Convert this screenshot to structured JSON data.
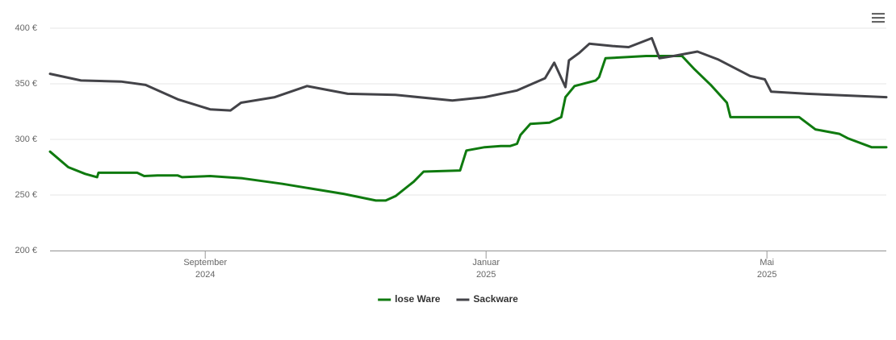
{
  "chart_data": {
    "type": "line",
    "series": [
      {
        "name": "lose Ware",
        "color": "#0f7a0f",
        "x": [
          6.79,
          7.05,
          7.29,
          7.46,
          7.48,
          8.03,
          8.13,
          8.32,
          8.61,
          8.67,
          9.07,
          9.53,
          10.1,
          10.97,
          11.43,
          11.57,
          11.71,
          11.97,
          12.11,
          12.63,
          12.72,
          12.98,
          13.21,
          13.34,
          13.44,
          13.49,
          13.63,
          13.9,
          14.07,
          14.13,
          14.26,
          14.56,
          14.61,
          14.7,
          15.28,
          15.79,
          15.97,
          16.2,
          16.43,
          16.48,
          17.46,
          17.69,
          18.03,
          18.15,
          18.49,
          18.7
        ],
        "values": [
          289,
          275,
          269,
          266,
          270,
          270,
          267,
          267.5,
          267.5,
          266,
          267,
          265,
          260,
          251,
          245,
          245,
          249,
          262,
          271,
          272,
          290,
          293,
          294,
          294,
          296,
          304,
          314,
          315,
          320,
          338,
          348,
          353,
          356,
          373,
          375,
          375,
          363,
          349,
          333,
          320,
          320,
          309,
          305,
          301,
          293,
          293
        ]
      },
      {
        "name": "Sackware",
        "color": "#434348",
        "x": [
          6.79,
          7.23,
          7.8,
          8.15,
          8.61,
          9.07,
          9.36,
          9.51,
          9.99,
          10.45,
          11.03,
          11.71,
          12.52,
          12.98,
          13.44,
          13.84,
          13.97,
          14.13,
          14.18,
          14.33,
          14.47,
          14.8,
          15.03,
          15.36,
          15.47,
          15.67,
          16.01,
          16.3,
          16.76,
          16.97,
          17.06,
          17.57,
          18.7
        ],
        "values": [
          359,
          353,
          352,
          349,
          336,
          327,
          326,
          333,
          338,
          348,
          341,
          340,
          335,
          338,
          344,
          355,
          369,
          347,
          371,
          378,
          386,
          384,
          383,
          391,
          373,
          375,
          379,
          372,
          357,
          354,
          343,
          341,
          338
        ]
      }
    ],
    "xlim": [
      6.79,
      18.7
    ],
    "xticks": [
      {
        "value": 9,
        "label": "September 2024"
      },
      {
        "value": 13,
        "label": "Januar 2025"
      },
      {
        "value": 17,
        "label": "Mai 2025"
      }
    ],
    "ylim": [
      200,
      400
    ],
    "yticks": [
      {
        "value": 200,
        "label": "200 €"
      },
      {
        "value": 250,
        "label": "250 €"
      },
      {
        "value": 300,
        "label": "300 €"
      },
      {
        "value": 350,
        "label": "350 €"
      },
      {
        "value": 400,
        "label": "400 €"
      }
    ],
    "grid": true
  }
}
